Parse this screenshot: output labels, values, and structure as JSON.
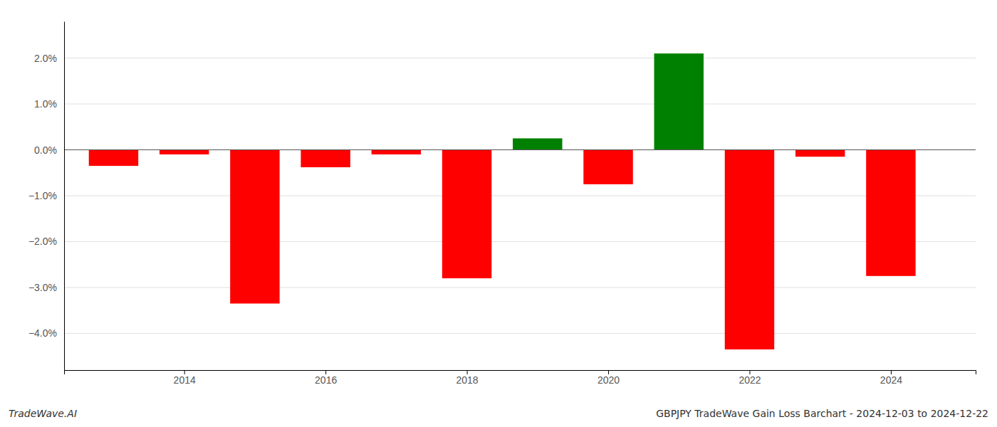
{
  "chart_data": {
    "type": "bar",
    "title": "GBPJPY TradeWave Gain Loss Barchart - 2024-12-03 to 2024-12-22",
    "annotations": [
      "TradeWave.AI"
    ],
    "x": [
      2013,
      2014,
      2015,
      2016,
      2017,
      2018,
      2019,
      2020,
      2021,
      2022,
      2023,
      2024
    ],
    "values": [
      -0.35,
      -0.1,
      -3.35,
      -0.38,
      -0.1,
      -2.8,
      0.25,
      -0.75,
      2.1,
      -4.35,
      -0.15,
      -2.75
    ],
    "colors": [
      "#ff0000",
      "#ff0000",
      "#ff0000",
      "#ff0000",
      "#ff0000",
      "#ff0000",
      "#008000",
      "#ff0000",
      "#008000",
      "#ff0000",
      "#ff0000",
      "#ff0000"
    ],
    "xlim": [
      2012.3,
      2025.2
    ],
    "xticks": [
      2014,
      2016,
      2018,
      2020,
      2022,
      2024
    ],
    "ylim": [
      -4.8,
      2.8
    ],
    "yticks": [
      {
        "value": -4.0,
        "label": "−4.0%"
      },
      {
        "value": -3.0,
        "label": "−3.0%"
      },
      {
        "value": -2.0,
        "label": "−2.0%"
      },
      {
        "value": -1.0,
        "label": "−1.0%"
      },
      {
        "value": 0.0,
        "label": "0.0%"
      },
      {
        "value": 1.0,
        "label": "1.0%"
      },
      {
        "value": 2.0,
        "label": "2.0%"
      }
    ],
    "grid": true
  }
}
